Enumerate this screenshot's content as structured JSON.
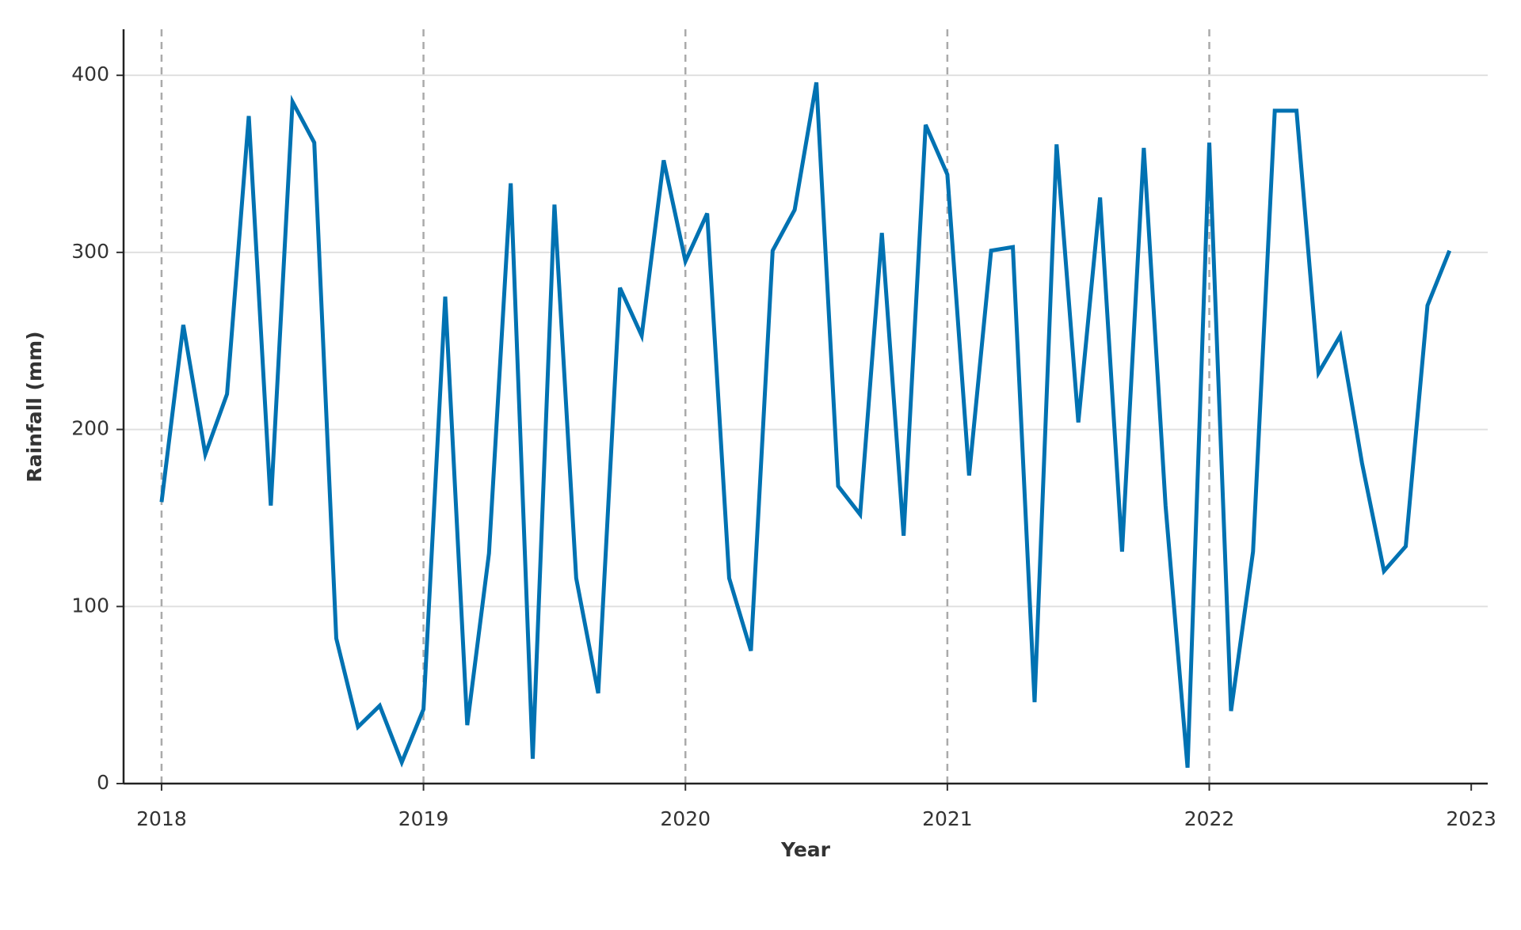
{
  "chart_data": {
    "type": "line",
    "xlabel": "Year",
    "ylabel": "Rainfall (mm)",
    "x": [
      2018.0,
      2018.083,
      2018.167,
      2018.25,
      2018.333,
      2018.417,
      2018.5,
      2018.583,
      2018.667,
      2018.75,
      2018.833,
      2018.917,
      2019.0,
      2019.083,
      2019.167,
      2019.25,
      2019.333,
      2019.417,
      2019.5,
      2019.583,
      2019.667,
      2019.75,
      2019.833,
      2019.917,
      2020.0,
      2020.083,
      2020.167,
      2020.25,
      2020.333,
      2020.417,
      2020.5,
      2020.583,
      2020.667,
      2020.75,
      2020.833,
      2020.917,
      2021.0,
      2021.083,
      2021.167,
      2021.25,
      2021.333,
      2021.417,
      2021.5,
      2021.583,
      2021.667,
      2021.75,
      2021.833,
      2021.917,
      2022.0,
      2022.083,
      2022.167,
      2022.25,
      2022.333,
      2022.417,
      2022.5,
      2022.583,
      2022.667,
      2022.75,
      2022.833,
      2022.917
    ],
    "series": [
      {
        "name": "Rainfall",
        "color": "#0072b2",
        "values": [
          159,
          259,
          186,
          220,
          377,
          157,
          385,
          362,
          82,
          32,
          44,
          12,
          42,
          275,
          33,
          130,
          339,
          14,
          327,
          116,
          51,
          280,
          253,
          352,
          295,
          322,
          116,
          75,
          301,
          324,
          396,
          168,
          152,
          311,
          140,
          372,
          344,
          174,
          301,
          303,
          46,
          361,
          204,
          331,
          131,
          359,
          157,
          9,
          362,
          41,
          131,
          380,
          380,
          232,
          253,
          181,
          120,
          134,
          270,
          301
        ]
      }
    ],
    "xlim": [
      2017.855,
      2023.063
    ],
    "xticks": [
      2018,
      2019,
      2020,
      2021,
      2022,
      2023
    ],
    "ylim": [
      0,
      426
    ],
    "yticks": [
      0,
      100,
      200,
      300,
      400
    ],
    "grid": true
  }
}
